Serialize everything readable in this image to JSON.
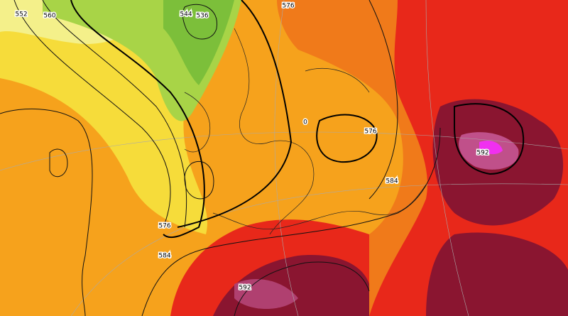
{
  "map": {
    "contour_labels": [
      "552",
      "560",
      "544",
      "536",
      "576",
      "576",
      "584",
      "592",
      "576",
      "584",
      "592",
      "0"
    ]
  }
}
